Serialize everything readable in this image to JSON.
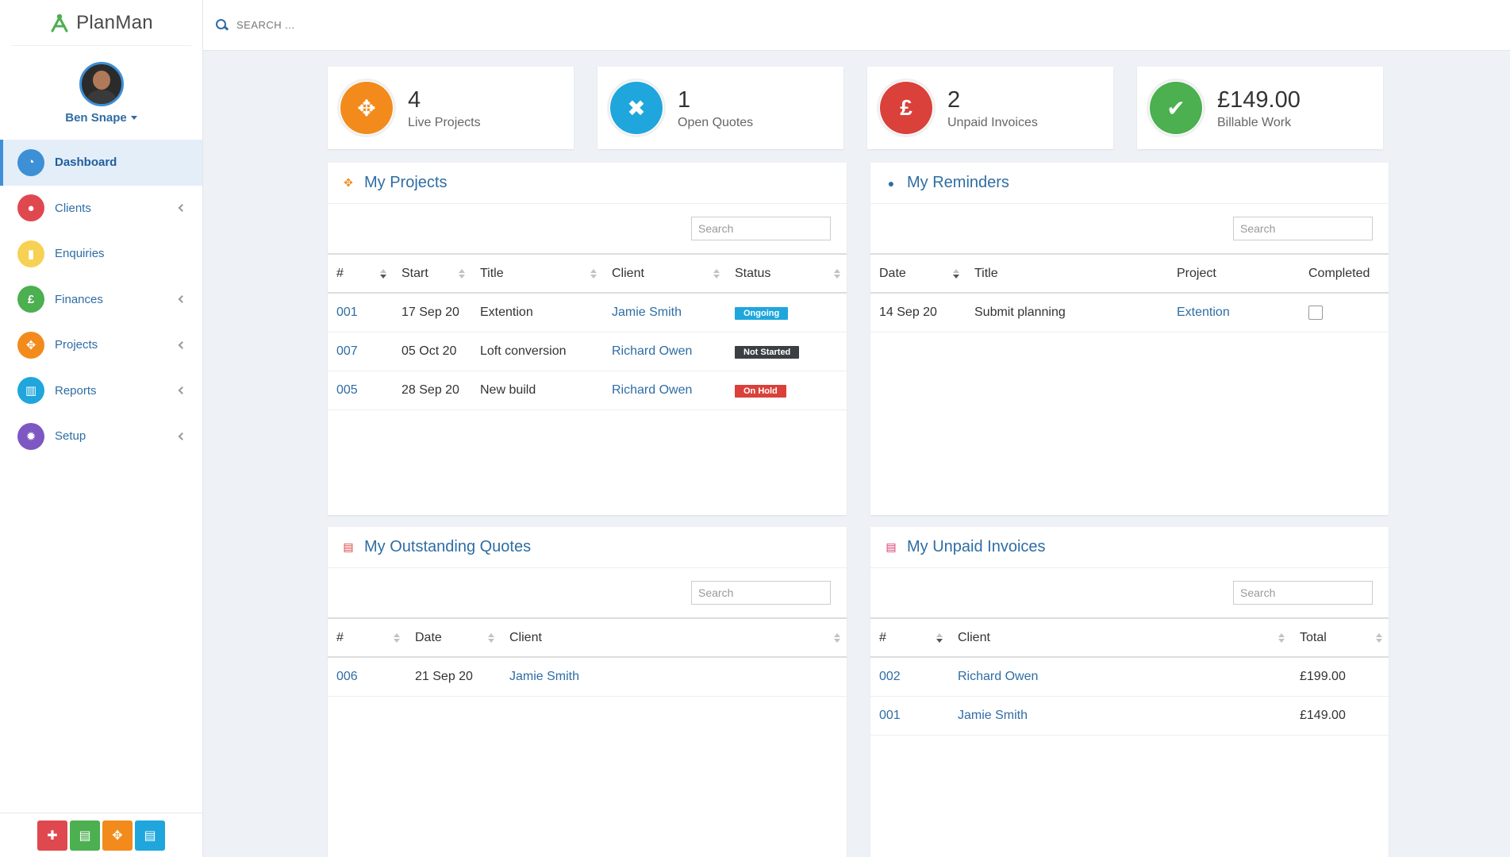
{
  "app": {
    "name": "PlanMan"
  },
  "user": {
    "name": "Ben Snape"
  },
  "nav": [
    {
      "label": "Dashboard",
      "icon": "dashboard-icon",
      "color": "#3d8fd6",
      "active": true,
      "arrow": false,
      "glyph": "◔"
    },
    {
      "label": "Clients",
      "icon": "users-icon",
      "color": "#e0484f",
      "active": false,
      "arrow": true,
      "glyph": "●"
    },
    {
      "label": "Enquiries",
      "icon": "bookmark-icon",
      "color": "#f7d154",
      "active": false,
      "arrow": false,
      "glyph": "▮"
    },
    {
      "label": "Finances",
      "icon": "pound-icon",
      "color": "#4caf50",
      "active": false,
      "arrow": true,
      "glyph": "£"
    },
    {
      "label": "Projects",
      "icon": "cubes-icon",
      "color": "#f28b1b",
      "active": false,
      "arrow": true,
      "glyph": "✥"
    },
    {
      "label": "Reports",
      "icon": "bar-chart-icon",
      "color": "#1fa6dd",
      "active": false,
      "arrow": true,
      "glyph": "▥"
    },
    {
      "label": "Setup",
      "icon": "gear-icon",
      "color": "#7e57c2",
      "active": false,
      "arrow": true,
      "glyph": "✹"
    }
  ],
  "quick_actions": [
    {
      "name": "add-client-button",
      "icon": "user-plus-icon",
      "color": "#e0484f",
      "glyph": "✚"
    },
    {
      "name": "new-quote-button",
      "icon": "file-icon",
      "color": "#4caf50",
      "glyph": "▤"
    },
    {
      "name": "new-project-button",
      "icon": "cubes-icon",
      "color": "#f28b1b",
      "glyph": "✥"
    },
    {
      "name": "new-invoice-button",
      "icon": "invoice-icon",
      "color": "#1fa6dd",
      "glyph": "▤"
    }
  ],
  "topbar": {
    "search_placeholder": "SEARCH ..."
  },
  "stats": [
    {
      "value": "4",
      "label": "Live Projects",
      "color": "#f28b1b",
      "icon": "cubes-icon",
      "glyph": "✥"
    },
    {
      "value": "1",
      "label": "Open Quotes",
      "color": "#1fa6dd",
      "icon": "user-times-icon",
      "glyph": "✖"
    },
    {
      "value": "2",
      "label": "Unpaid Invoices",
      "color": "#d9413a",
      "icon": "pound-icon",
      "glyph": "£"
    },
    {
      "value": "£149.00",
      "label": "Billable Work",
      "color": "#4caf50",
      "icon": "check-icon",
      "glyph": "✔"
    }
  ],
  "projects": {
    "title": "My Projects",
    "search_placeholder": "Search",
    "columns": [
      "#",
      "Start",
      "Title",
      "Client",
      "Status"
    ],
    "rows": [
      {
        "id": "001",
        "start": "17 Sep 20",
        "title": "Extention",
        "client": "Jamie Smith",
        "status": "Ongoing",
        "status_color": "#1fa6dd"
      },
      {
        "id": "007",
        "start": "05 Oct 20",
        "title": "Loft conversion",
        "client": "Richard Owen",
        "status": "Not Started",
        "status_color": "#3a3f44"
      },
      {
        "id": "005",
        "start": "28 Sep 20",
        "title": "New build",
        "client": "Richard Owen",
        "status": "On Hold",
        "status_color": "#d9413a"
      }
    ]
  },
  "reminders": {
    "title": "My Reminders",
    "search_placeholder": "Search",
    "columns": [
      "Date",
      "Title",
      "Project",
      "Completed"
    ],
    "rows": [
      {
        "date": "14 Sep 20",
        "title": "Submit planning",
        "project": "Extention",
        "completed": false
      }
    ]
  },
  "quotes": {
    "title": "My Outstanding Quotes",
    "search_placeholder": "Search",
    "columns": [
      "#",
      "Date",
      "Client"
    ],
    "rows": [
      {
        "id": "006",
        "date": "21 Sep 20",
        "client": "Jamie Smith"
      }
    ]
  },
  "invoices": {
    "title": "My Unpaid Invoices",
    "search_placeholder": "Search",
    "columns": [
      "#",
      "Client",
      "Total"
    ],
    "rows": [
      {
        "id": "002",
        "client": "Richard Owen",
        "total": "£199.00"
      },
      {
        "id": "001",
        "client": "Jamie Smith",
        "total": "£149.00"
      }
    ]
  }
}
